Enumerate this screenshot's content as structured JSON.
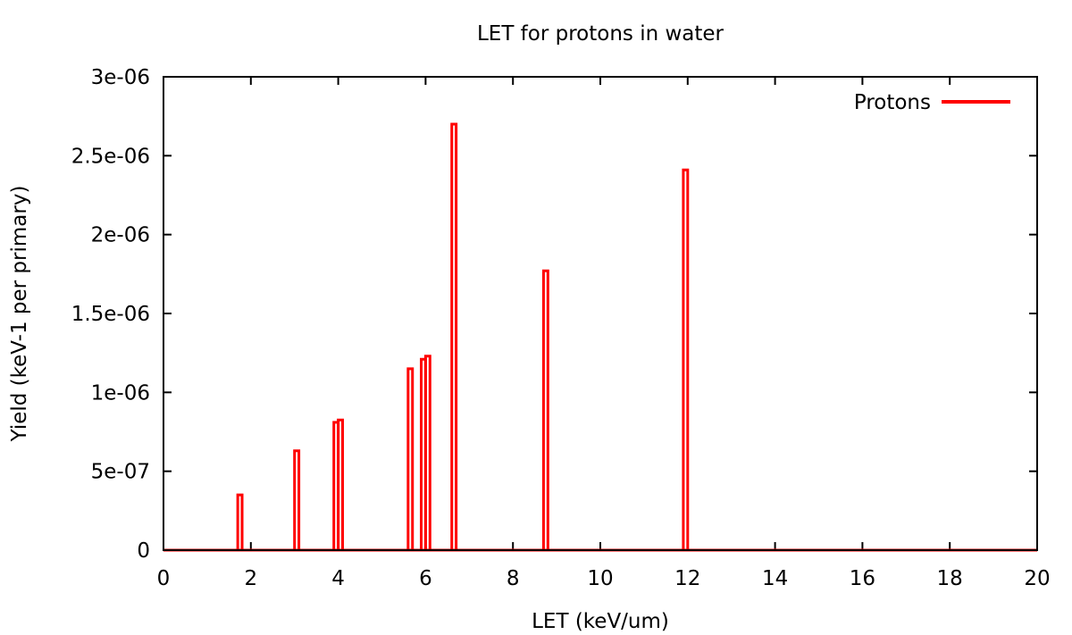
{
  "chart_data": {
    "type": "bar",
    "title": "LET for protons in water",
    "xlabel": "LET (keV/um)",
    "ylabel": "Yield (keV-1 per primary)",
    "xlim": [
      0,
      20
    ],
    "ylim": [
      0,
      3e-06
    ],
    "xticks": [
      "0",
      "2",
      "4",
      "6",
      "8",
      "10",
      "12",
      "14",
      "16",
      "18",
      "20"
    ],
    "yticks": [
      "0",
      "5e-07",
      "1e-06",
      "1.5e-06",
      "2e-06",
      "2.5e-06",
      "3e-06"
    ],
    "grid": false,
    "legend_position": "top-right",
    "series": [
      {
        "name": "Protons",
        "color": "#ff0000",
        "bins": [
          {
            "x0": 1.7,
            "x1": 1.8,
            "y": 3.5e-07
          },
          {
            "x0": 3.0,
            "x1": 3.1,
            "y": 6.3e-07
          },
          {
            "x0": 3.9,
            "x1": 4.0,
            "y": 8.1e-07
          },
          {
            "x0": 4.0,
            "x1": 4.1,
            "y": 8.25e-07
          },
          {
            "x0": 5.6,
            "x1": 5.7,
            "y": 1.15e-06
          },
          {
            "x0": 5.9,
            "x1": 6.0,
            "y": 1.21e-06
          },
          {
            "x0": 6.0,
            "x1": 6.1,
            "y": 1.23e-06
          },
          {
            "x0": 6.6,
            "x1": 6.7,
            "y": 2.7e-06
          },
          {
            "x0": 8.7,
            "x1": 8.8,
            "y": 1.77e-06
          },
          {
            "x0": 11.9,
            "x1": 12.0,
            "y": 2.41e-06
          }
        ]
      }
    ]
  }
}
